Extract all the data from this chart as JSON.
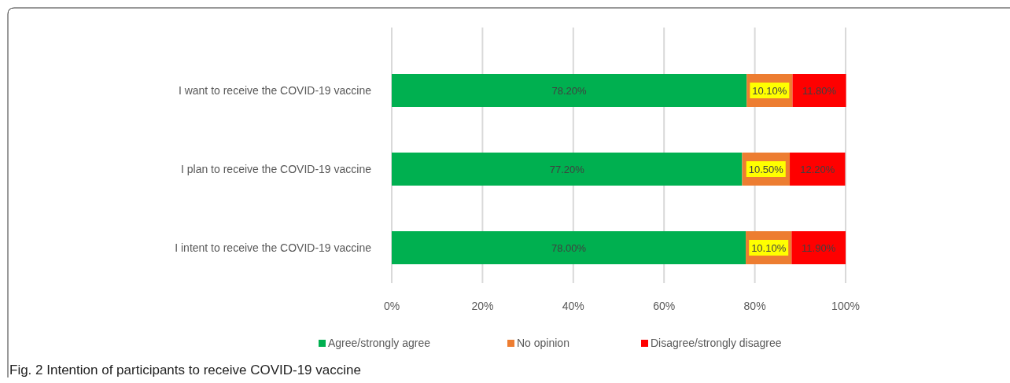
{
  "chart_data": {
    "type": "bar",
    "orientation": "horizontal",
    "stacked": true,
    "categories": [
      "I want to receive the COVID-19 vaccine",
      "I plan to receive the COVID-19 vaccine",
      "I intent to receive the COVID-19 vaccine"
    ],
    "series": [
      {
        "name": "Agree/strongly agree",
        "color": "#00b050",
        "values": [
          78.2,
          77.2,
          78.0
        ],
        "value_labels": [
          "78.20%",
          "77.20%",
          "78.00%"
        ]
      },
      {
        "name": "No opinion",
        "color": "#ed7d31",
        "values": [
          10.1,
          10.5,
          10.1
        ],
        "value_labels": [
          "10.10%",
          "10.50%",
          "10.10%"
        ]
      },
      {
        "name": "Disagree/strongly disagree",
        "color": "#ff0000",
        "values": [
          11.8,
          12.2,
          11.9
        ],
        "value_labels": [
          "11.80%",
          "12.20%",
          "11.90%"
        ]
      }
    ],
    "xlim": [
      0,
      100
    ],
    "xticks": [
      {
        "value": 0,
        "label": "0%"
      },
      {
        "value": 20,
        "label": "20%"
      },
      {
        "value": 40,
        "label": "40%"
      },
      {
        "value": 60,
        "label": "60%"
      },
      {
        "value": 80,
        "label": "80%"
      },
      {
        "value": 100,
        "label": "100%"
      }
    ],
    "grid": "x",
    "legend": "bottom",
    "annotations": [
      "Fig. 2  Intention of participants to receive COVID-19 vaccine"
    ]
  }
}
